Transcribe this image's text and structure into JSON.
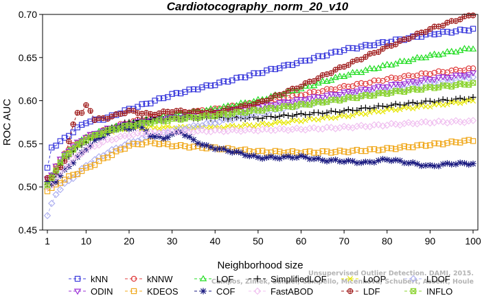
{
  "chart_data": {
    "type": "line",
    "title": "Cardiotocography_norm_20_v10",
    "xlabel": "Neighborhood size",
    "ylabel": "ROC AUC",
    "xlim": [
      1,
      100
    ],
    "ylim": [
      0.45,
      0.7
    ],
    "xticks": [
      1,
      10,
      20,
      30,
      40,
      50,
      60,
      70,
      80,
      90,
      100
    ],
    "yticks": [
      0.45,
      0.5,
      0.55,
      0.6,
      0.65,
      0.7
    ],
    "ytick_labels": [
      "0.45",
      "0.50",
      "0.55",
      "0.60",
      "0.65",
      "0.70"
    ],
    "legend_position": "bottom",
    "watermark": [
      "Campos, Zimek, Sander, Campello, Micenkova, Schubert, Assent, Houle",
      "Unsupervised Outlier Detection. DAMI, 2015."
    ],
    "series": [
      {
        "name": "kNN",
        "color": "#3a3adc",
        "marker": "square",
        "dash": "4,3",
        "x": [
          1,
          2,
          3,
          5,
          8,
          10,
          15,
          20,
          25,
          30,
          40,
          50,
          60,
          70,
          80,
          90,
          100
        ],
        "y": [
          0.521,
          0.546,
          0.549,
          0.556,
          0.568,
          0.575,
          0.58,
          0.59,
          0.598,
          0.607,
          0.619,
          0.632,
          0.645,
          0.659,
          0.668,
          0.677,
          0.683
        ]
      },
      {
        "name": "kNNW",
        "color": "#e03c3c",
        "marker": "circle",
        "dash": "4,3",
        "x": [
          1,
          2,
          3,
          5,
          8,
          10,
          15,
          20,
          25,
          30,
          40,
          50,
          60,
          70,
          80,
          90,
          100
        ],
        "y": [
          0.506,
          0.514,
          0.523,
          0.54,
          0.551,
          0.557,
          0.567,
          0.575,
          0.58,
          0.584,
          0.59,
          0.598,
          0.607,
          0.616,
          0.625,
          0.632,
          0.637
        ]
      },
      {
        "name": "LOF",
        "color": "#22dd22",
        "marker": "triangle",
        "dash": "4,3",
        "x": [
          1,
          2,
          3,
          5,
          8,
          10,
          15,
          20,
          25,
          30,
          40,
          50,
          60,
          70,
          80,
          90,
          100
        ],
        "y": [
          0.5,
          0.512,
          0.521,
          0.537,
          0.55,
          0.557,
          0.567,
          0.573,
          0.578,
          0.583,
          0.59,
          0.6,
          0.614,
          0.629,
          0.641,
          0.652,
          0.661
        ]
      },
      {
        "name": "SimplifiedLOF",
        "color": "#000000",
        "marker": "plus",
        "dash": "4,3",
        "x": [
          1,
          2,
          3,
          5,
          8,
          10,
          15,
          20,
          25,
          30,
          40,
          50,
          60,
          70,
          80,
          90,
          100
        ],
        "y": [
          0.502,
          0.505,
          0.515,
          0.532,
          0.545,
          0.553,
          0.566,
          0.575,
          0.579,
          0.58,
          0.58,
          0.58,
          0.584,
          0.588,
          0.594,
          0.599,
          0.603
        ]
      },
      {
        "name": "LoOP",
        "color": "#e6e600",
        "marker": "x",
        "dash": "4,3",
        "x": [
          1,
          2,
          3,
          5,
          8,
          10,
          15,
          20,
          25,
          30,
          40,
          50,
          60,
          70,
          80,
          90,
          100
        ],
        "y": [
          0.503,
          0.51,
          0.522,
          0.536,
          0.549,
          0.556,
          0.564,
          0.568,
          0.569,
          0.569,
          0.569,
          0.572,
          0.577,
          0.582,
          0.589,
          0.594,
          0.6
        ]
      },
      {
        "name": "LDOF",
        "color": "#aeb0f0",
        "marker": "diamond",
        "dash": "4,3",
        "x": [
          1,
          2,
          3,
          5,
          8,
          10,
          15,
          20,
          25,
          30,
          40,
          50,
          60,
          70,
          80,
          90,
          100
        ],
        "y": [
          0.466,
          0.48,
          0.492,
          0.503,
          0.515,
          0.525,
          0.54,
          0.551,
          0.559,
          0.565,
          0.575,
          0.585,
          0.595,
          0.604,
          0.612,
          0.62,
          0.628
        ]
      },
      {
        "name": "ODIN",
        "color": "#9a2fd6",
        "marker": "triangle-down",
        "dash": "4,3",
        "x": [
          1,
          2,
          3,
          5,
          8,
          10,
          15,
          20,
          25,
          30,
          40,
          50,
          60,
          70,
          80,
          90,
          100
        ],
        "y": [
          0.509,
          0.515,
          0.524,
          0.538,
          0.551,
          0.558,
          0.567,
          0.573,
          0.577,
          0.58,
          0.585,
          0.593,
          0.601,
          0.609,
          0.617,
          0.625,
          0.631
        ]
      },
      {
        "name": "KDEOS",
        "color": "#f0a81c",
        "marker": "square",
        "dash": "4,3",
        "x": [
          1,
          2,
          3,
          5,
          8,
          10,
          15,
          20,
          25,
          30,
          40,
          50,
          60,
          70,
          80,
          90,
          100
        ],
        "y": [
          0.496,
          0.498,
          0.502,
          0.509,
          0.516,
          0.521,
          0.535,
          0.548,
          0.552,
          0.548,
          0.545,
          0.541,
          0.54,
          0.541,
          0.544,
          0.549,
          0.554
        ]
      },
      {
        "name": "COF",
        "color": "#1a1a80",
        "marker": "asterisk",
        "dash": "4,3",
        "x": [
          1,
          2,
          3,
          5,
          8,
          10,
          12,
          15,
          18,
          20,
          22,
          25,
          28,
          30,
          32,
          35,
          38,
          40,
          45,
          50,
          55,
          60,
          65,
          70,
          75,
          80,
          85,
          90,
          95,
          100
        ],
        "y": [
          0.505,
          0.503,
          0.507,
          0.519,
          0.534,
          0.544,
          0.553,
          0.562,
          0.569,
          0.566,
          0.572,
          0.56,
          0.556,
          0.561,
          0.564,
          0.554,
          0.547,
          0.545,
          0.54,
          0.534,
          0.534,
          0.535,
          0.531,
          0.53,
          0.528,
          0.532,
          0.528,
          0.524,
          0.527,
          0.527
        ]
      },
      {
        "name": "FastABOD",
        "color": "#f0c0f0",
        "marker": "diamond",
        "dash": "4,3",
        "x": [
          1,
          2,
          3,
          5,
          8,
          10,
          15,
          20,
          25,
          30,
          40,
          50,
          60,
          70,
          80,
          90,
          100
        ],
        "y": [
          0.5,
          0.503,
          0.51,
          0.523,
          0.536,
          0.543,
          0.554,
          0.56,
          0.563,
          0.564,
          0.565,
          0.566,
          0.567,
          0.569,
          0.572,
          0.575,
          0.576
        ]
      },
      {
        "name": "LDF",
        "color": "#a01e1e",
        "marker": "circle-plus",
        "dash": "4,3",
        "x": [
          1,
          2,
          3,
          5,
          7,
          8,
          9,
          10,
          11,
          12,
          15,
          20,
          25,
          30,
          40,
          50,
          60,
          70,
          80,
          90,
          100
        ],
        "y": [
          0.511,
          0.51,
          0.518,
          0.53,
          0.573,
          0.587,
          0.585,
          0.594,
          0.589,
          0.578,
          0.58,
          0.588,
          0.584,
          0.588,
          0.586,
          0.597,
          0.617,
          0.64,
          0.662,
          0.683,
          0.7
        ]
      },
      {
        "name": "INFLO",
        "color": "#8ad32e",
        "marker": "square-x",
        "dash": "4,3",
        "x": [
          1,
          2,
          3,
          5,
          8,
          10,
          15,
          20,
          25,
          30,
          40,
          50,
          60,
          70,
          80,
          90,
          100
        ],
        "y": [
          0.501,
          0.511,
          0.52,
          0.535,
          0.548,
          0.555,
          0.565,
          0.571,
          0.575,
          0.578,
          0.583,
          0.589,
          0.595,
          0.602,
          0.609,
          0.615,
          0.62
        ]
      }
    ]
  }
}
